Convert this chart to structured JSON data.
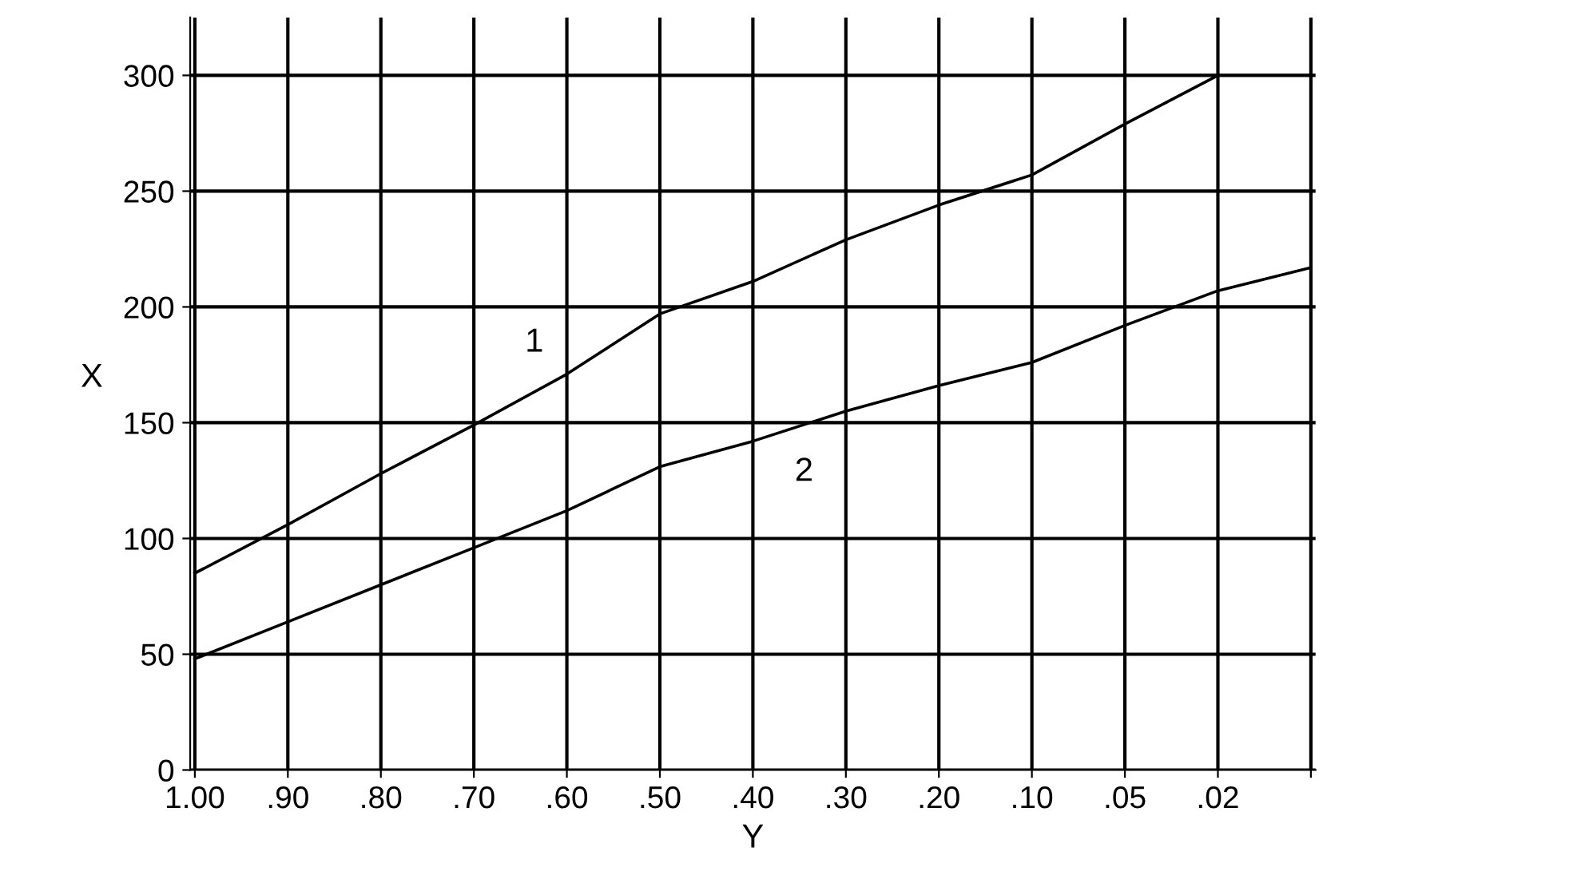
{
  "chart_data": {
    "type": "line",
    "xlabel": "Y",
    "ylabel": "X",
    "categories": [
      "1.00",
      ".90",
      ".80",
      ".70",
      ".60",
      ".50",
      ".40",
      ".30",
      ".20",
      ".10",
      ".05",
      ".02",
      null
    ],
    "series": [
      {
        "name": "1",
        "color": "#000000",
        "values": [
          85,
          106,
          128,
          149,
          171,
          197,
          211,
          229,
          244,
          257,
          279,
          300,
          null
        ]
      },
      {
        "name": "2",
        "color": "#000000",
        "values": [
          48,
          64,
          80,
          96,
          112,
          131,
          142,
          155,
          166,
          176,
          192,
          207,
          217
        ]
      }
    ],
    "ylim": [
      0,
      325
    ],
    "yticks": [
      0,
      50,
      100,
      150,
      200,
      250,
      300
    ],
    "grid": true,
    "marker": "none",
    "line_style": "solid",
    "legend": false
  }
}
